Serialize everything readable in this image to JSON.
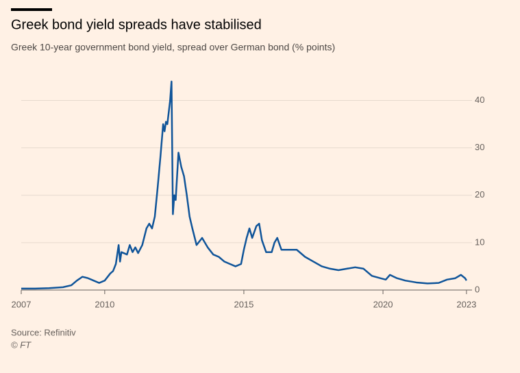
{
  "chart_data": {
    "type": "line",
    "title": "Greek bond yield spreads have stabilised",
    "subtitle": "Greek 10-year government bond yield, spread over German bond (% points)",
    "source": "Source: Refinitiv",
    "copyright": "© FT",
    "x": [
      2007.0,
      2007.5,
      2008.0,
      2008.5,
      2008.8,
      2009.0,
      2009.2,
      2009.4,
      2009.6,
      2009.8,
      2010.0,
      2010.2,
      2010.3,
      2010.4,
      2010.5,
      2010.55,
      2010.6,
      2010.8,
      2010.9,
      2011.0,
      2011.1,
      2011.2,
      2011.35,
      2011.5,
      2011.6,
      2011.7,
      2011.8,
      2011.9,
      2012.0,
      2012.1,
      2012.15,
      2012.2,
      2012.25,
      2012.35,
      2012.4,
      2012.45,
      2012.5,
      2012.55,
      2012.65,
      2012.75,
      2012.85,
      2012.95,
      2013.05,
      2013.15,
      2013.3,
      2013.5,
      2013.7,
      2013.9,
      2014.1,
      2014.3,
      2014.5,
      2014.7,
      2014.9,
      2015.0,
      2015.1,
      2015.2,
      2015.3,
      2015.45,
      2015.55,
      2015.65,
      2015.8,
      2016.0,
      2016.1,
      2016.2,
      2016.35,
      2016.6,
      2016.9,
      2017.2,
      2017.5,
      2017.8,
      2018.1,
      2018.4,
      2018.7,
      2019.0,
      2019.3,
      2019.6,
      2019.9,
      2020.1,
      2020.25,
      2020.5,
      2020.8,
      2021.2,
      2021.6,
      2022.0,
      2022.3,
      2022.6,
      2022.8,
      2022.95,
      2023.0
    ],
    "series": [
      {
        "name": "Greek 10-year spread",
        "color": "#0f5499",
        "values": [
          0.3,
          0.3,
          0.4,
          0.6,
          1.0,
          2.0,
          2.8,
          2.5,
          2.0,
          1.5,
          2.0,
          3.5,
          4.0,
          5.5,
          9.5,
          6.0,
          8.0,
          7.5,
          9.5,
          8.0,
          9.0,
          7.8,
          9.5,
          13.0,
          14.0,
          13.0,
          15.5,
          21.5,
          28.0,
          35.0,
          33.5,
          35.5,
          35.0,
          40.0,
          44.0,
          16.0,
          20.0,
          19.0,
          29.0,
          26.0,
          24.0,
          20.0,
          15.5,
          13.0,
          9.5,
          11.0,
          9.0,
          7.5,
          7.0,
          6.0,
          5.5,
          5.0,
          5.5,
          8.5,
          11.0,
          13.0,
          11.0,
          13.5,
          14.0,
          10.5,
          8.0,
          8.0,
          10.0,
          11.0,
          8.5,
          8.5,
          8.5,
          7.0,
          6.0,
          5.0,
          4.5,
          4.2,
          4.5,
          4.8,
          4.5,
          3.0,
          2.5,
          2.2,
          3.2,
          2.5,
          2.0,
          1.6,
          1.4,
          1.5,
          2.2,
          2.5,
          3.2,
          2.5,
          2.0
        ]
      }
    ],
    "xlim": [
      2007,
      2023.2
    ],
    "xticks": [
      2007,
      2010,
      2015,
      2020,
      2023
    ],
    "ylim": [
      0,
      45
    ],
    "yticks": [
      0,
      10,
      20,
      30,
      40
    ],
    "grid": true
  }
}
